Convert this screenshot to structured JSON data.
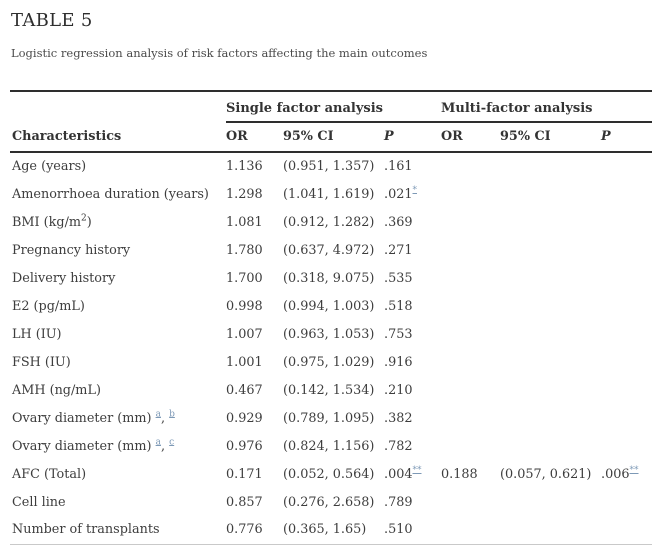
{
  "page": {
    "title": "TABLE 5",
    "caption": "Logistic regression analysis of risk factors affecting the main outcomes"
  },
  "colors": {
    "rule_dark": "#2e2e2e",
    "rule_light": "#c9c9c9",
    "text": "#3d3d3d",
    "footnote_link": "#7d99b6"
  },
  "table": {
    "group_headers": [
      "Single factor analysis",
      "Multi-factor analysis"
    ],
    "columns": {
      "characteristics": "Characteristics",
      "or": "OR",
      "ci": "95% CI",
      "p": "P"
    },
    "rows": [
      {
        "label": [
          {
            "t": "Age (years)"
          }
        ],
        "single": {
          "or": "1.136",
          "ci": "(0.951, 1.357)",
          "p": [
            {
              "t": ".161"
            }
          ]
        },
        "multi": {
          "or": "",
          "ci": "",
          "p": []
        }
      },
      {
        "label": [
          {
            "t": "Amenorrhoea duration (years)"
          }
        ],
        "single": {
          "or": "1.298",
          "ci": "(1.041, 1.619)",
          "p": [
            {
              "t": ".021"
            },
            {
              "t": "*",
              "sup": true,
              "link": true
            }
          ]
        },
        "multi": {
          "or": "",
          "ci": "",
          "p": []
        }
      },
      {
        "label": [
          {
            "t": "BMI (kg/m"
          },
          {
            "t": "2",
            "sup": true
          },
          {
            "t": ")"
          }
        ],
        "single": {
          "or": "1.081",
          "ci": "(0.912, 1.282)",
          "p": [
            {
              "t": ".369"
            }
          ]
        },
        "multi": {
          "or": "",
          "ci": "",
          "p": []
        }
      },
      {
        "label": [
          {
            "t": "Pregnancy history"
          }
        ],
        "single": {
          "or": "1.780",
          "ci": "(0.637, 4.972)",
          "p": [
            {
              "t": ".271"
            }
          ]
        },
        "multi": {
          "or": "",
          "ci": "",
          "p": []
        }
      },
      {
        "label": [
          {
            "t": "Delivery history"
          }
        ],
        "single": {
          "or": "1.700",
          "ci": "(0.318, 9.075)",
          "p": [
            {
              "t": ".535"
            }
          ]
        },
        "multi": {
          "or": "",
          "ci": "",
          "p": []
        }
      },
      {
        "label": [
          {
            "t": "E2 (pg/mL)"
          }
        ],
        "single": {
          "or": "0.998",
          "ci": "(0.994, 1.003)",
          "p": [
            {
              "t": ".518"
            }
          ]
        },
        "multi": {
          "or": "",
          "ci": "",
          "p": []
        }
      },
      {
        "label": [
          {
            "t": "LH (IU)"
          }
        ],
        "single": {
          "or": "1.007",
          "ci": "(0.963, 1.053)",
          "p": [
            {
              "t": ".753"
            }
          ]
        },
        "multi": {
          "or": "",
          "ci": "",
          "p": []
        }
      },
      {
        "label": [
          {
            "t": "FSH (IU)"
          }
        ],
        "single": {
          "or": "1.001",
          "ci": "(0.975, 1.029)",
          "p": [
            {
              "t": ".916"
            }
          ]
        },
        "multi": {
          "or": "",
          "ci": "",
          "p": []
        }
      },
      {
        "label": [
          {
            "t": "AMH (ng/mL)"
          }
        ],
        "single": {
          "or": "0.467",
          "ci": "(0.142, 1.534)",
          "p": [
            {
              "t": ".210"
            }
          ]
        },
        "multi": {
          "or": "",
          "ci": "",
          "p": []
        }
      },
      {
        "label": [
          {
            "t": "Ovary diameter (mm) "
          },
          {
            "t": "a",
            "sup": true,
            "link": true
          },
          {
            "t": ", "
          },
          {
            "t": "b",
            "sup": true,
            "link": true
          }
        ],
        "single": {
          "or": "0.929",
          "ci": "(0.789, 1.095)",
          "p": [
            {
              "t": ".382"
            }
          ]
        },
        "multi": {
          "or": "",
          "ci": "",
          "p": []
        }
      },
      {
        "label": [
          {
            "t": "Ovary diameter (mm) "
          },
          {
            "t": "a",
            "sup": true,
            "link": true
          },
          {
            "t": ", "
          },
          {
            "t": "c",
            "sup": true,
            "link": true
          }
        ],
        "single": {
          "or": "0.976",
          "ci": "(0.824, 1.156)",
          "p": [
            {
              "t": ".782"
            }
          ]
        },
        "multi": {
          "or": "",
          "ci": "",
          "p": []
        }
      },
      {
        "label": [
          {
            "t": "AFC (Total)"
          }
        ],
        "single": {
          "or": "0.171",
          "ci": "(0.052, 0.564)",
          "p": [
            {
              "t": ".004"
            },
            {
              "t": "**",
              "sup": true,
              "link": true
            }
          ]
        },
        "multi": {
          "or": "0.188",
          "ci": "(0.057, 0.621)",
          "p": [
            {
              "t": ".006"
            },
            {
              "t": "**",
              "sup": true,
              "link": true
            }
          ]
        }
      },
      {
        "label": [
          {
            "t": "Cell line"
          }
        ],
        "single": {
          "or": "0.857",
          "ci": "(0.276, 2.658)",
          "p": [
            {
              "t": ".789"
            }
          ]
        },
        "multi": {
          "or": "",
          "ci": "",
          "p": []
        }
      },
      {
        "label": [
          {
            "t": "Number of transplants"
          }
        ],
        "single": {
          "or": "0.776",
          "ci": "(0.365, 1.65)",
          "p": [
            {
              "t": ".510"
            }
          ]
        },
        "multi": {
          "or": "",
          "ci": "",
          "p": []
        }
      }
    ]
  }
}
